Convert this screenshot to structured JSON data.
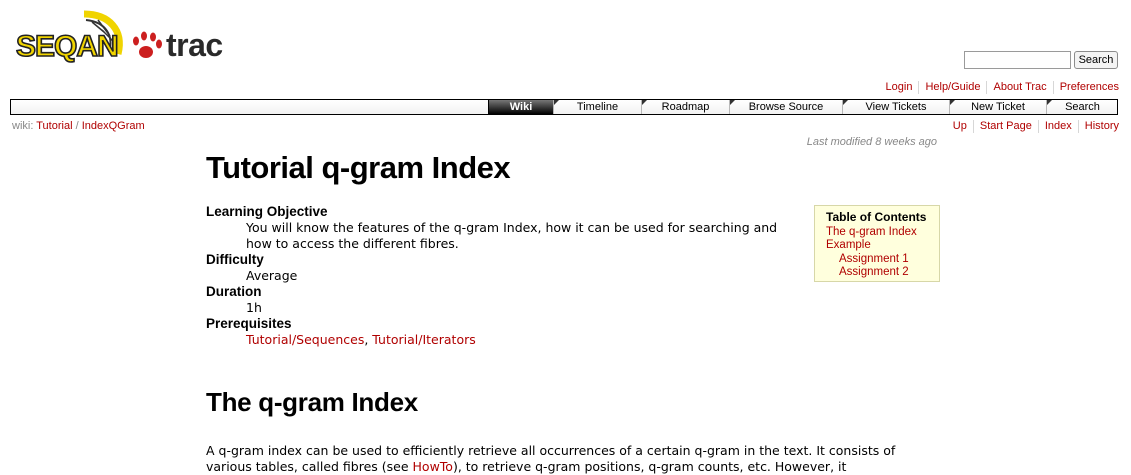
{
  "logo": {
    "word1": "SEQAN",
    "word2": "trac"
  },
  "search": {
    "placeholder": "",
    "button_label": "Search"
  },
  "metanav": [
    "Login",
    "Help/Guide",
    "About Trac",
    "Preferences"
  ],
  "mainnav": [
    "Wiki",
    "Timeline",
    "Roadmap",
    "Browse Source",
    "View Tickets",
    "New Ticket",
    "Search"
  ],
  "mainnav_active": "Wiki",
  "breadcrumb": {
    "prefix": "wiki:",
    "parts": [
      "Tutorial",
      "IndexQGram"
    ],
    "sep": "/"
  },
  "ctxtnav": [
    "Up",
    "Start Page",
    "Index",
    "History"
  ],
  "last_modified": "Last modified 8 weeks ago",
  "title": "Tutorial q-gram Index",
  "deflist": {
    "learning_objective_label": "Learning Objective",
    "learning_objective_text": "You will know the features of the q-gram Index, how it can be used for searching and how to access the different fibres.",
    "difficulty_label": "Difficulty",
    "difficulty_text": "Average",
    "duration_label": "Duration",
    "duration_text": "1h",
    "prerequisites_label": "Prerequisites",
    "prerequisite_1": "Tutorial/Sequences",
    "prerequisite_sep": ", ",
    "prerequisite_2": "Tutorial/Iterators"
  },
  "toc": {
    "title": "Table of Contents",
    "items": [
      {
        "label": "The q-gram Index",
        "level": 1
      },
      {
        "label": "Example",
        "level": 1
      },
      {
        "label": "Assignment 1",
        "level": 2
      },
      {
        "label": "Assignment 2",
        "level": 2
      }
    ]
  },
  "section_heading": "The q-gram Index",
  "intro": {
    "part1": "A q-gram index can be used to efficiently retrieve all occurrences of a certain q-gram in the text. It consists of various tables, called fibres (see ",
    "link": "HowTo",
    "part2": "), to retrieve q-gram positions, q-gram counts, etc. However, it"
  },
  "colors": {
    "link": "#b00000",
    "toc_bg": "#ffffdd",
    "logo_yellow": "#f0d400",
    "logo_red": "#cc1f1f"
  }
}
